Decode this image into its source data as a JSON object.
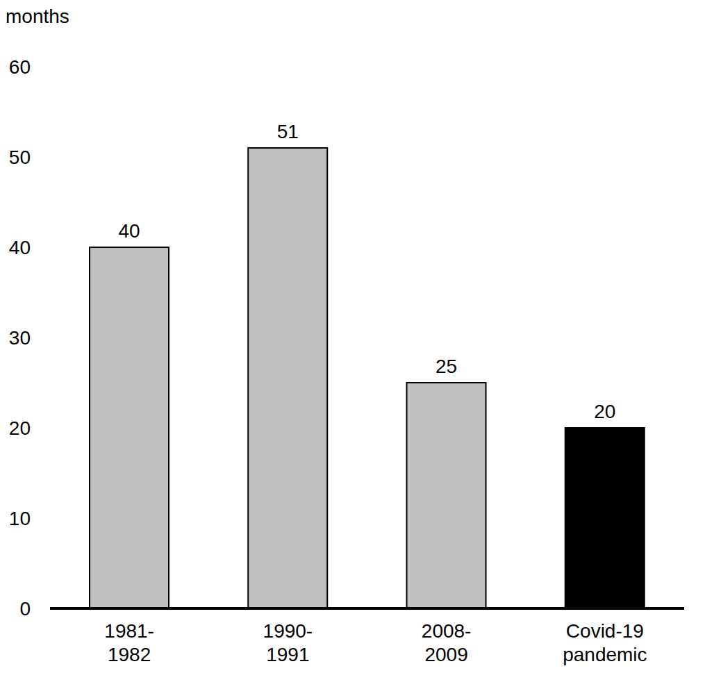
{
  "chart_data": {
    "type": "bar",
    "y_label": "months",
    "categories": [
      "1981-\n1982",
      "1990-\n1991",
      "2008-\n2009",
      "Covid-19\npandemic"
    ],
    "values": [
      40,
      51,
      25,
      20
    ],
    "colors": [
      "#c0c0c0",
      "#c0c0c0",
      "#c0c0c0",
      "#000000"
    ],
    "ylim": [
      0,
      60
    ],
    "yticks": [
      0,
      10,
      20,
      30,
      40,
      50,
      60
    ],
    "grid": false,
    "data_labels": true
  }
}
